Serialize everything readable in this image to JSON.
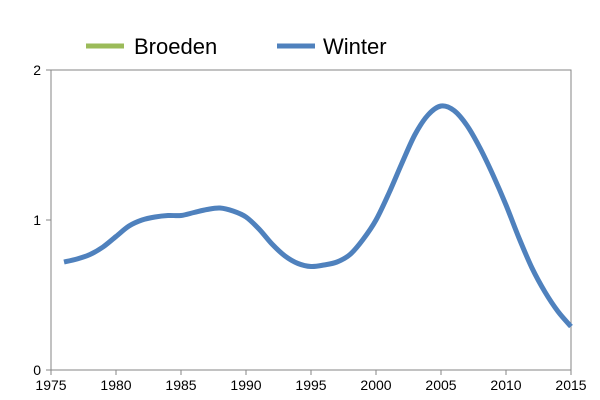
{
  "chart_data": {
    "type": "line",
    "title": "",
    "xlabel": "",
    "ylabel": "",
    "xlim": [
      1975,
      2015
    ],
    "ylim": [
      0,
      2
    ],
    "x_ticks": [
      {
        "value": 1975,
        "label": "1975"
      },
      {
        "value": 1980,
        "label": "1980"
      },
      {
        "value": 1985,
        "label": "1985"
      },
      {
        "value": 1990,
        "label": "1990"
      },
      {
        "value": 1995,
        "label": "1995"
      },
      {
        "value": 2000,
        "label": "2000"
      },
      {
        "value": 2005,
        "label": "2005"
      },
      {
        "value": 2010,
        "label": "2010"
      },
      {
        "value": 2015,
        "label": "2015"
      }
    ],
    "y_ticks": [
      {
        "value": 0,
        "label": "0"
      },
      {
        "value": 1,
        "label": "1"
      },
      {
        "value": 2,
        "label": "2"
      }
    ],
    "grid": false,
    "legend": "top-left",
    "series": [
      {
        "name": "Broeden",
        "color": "#9bbb59",
        "x": [],
        "values": []
      },
      {
        "name": "Winter",
        "color": "#4f81bd",
        "x": [
          1976,
          1977,
          1978,
          1979,
          1980,
          1981,
          1982,
          1983,
          1984,
          1985,
          1986,
          1987,
          1988,
          1989,
          1990,
          1991,
          1992,
          1993,
          1994,
          1995,
          1996,
          1997,
          1998,
          1999,
          2000,
          2001,
          2002,
          2003,
          2004,
          2005,
          2006,
          2007,
          2008,
          2009,
          2010,
          2011,
          2012,
          2013,
          2014,
          2015
        ],
        "values": [
          0.72,
          0.74,
          0.77,
          0.82,
          0.89,
          0.96,
          1.0,
          1.02,
          1.03,
          1.03,
          1.05,
          1.07,
          1.08,
          1.06,
          1.02,
          0.94,
          0.84,
          0.76,
          0.71,
          0.69,
          0.7,
          0.72,
          0.77,
          0.87,
          1.0,
          1.18,
          1.38,
          1.57,
          1.7,
          1.76,
          1.73,
          1.63,
          1.48,
          1.3,
          1.1,
          0.88,
          0.68,
          0.52,
          0.39,
          0.29
        ]
      }
    ]
  }
}
